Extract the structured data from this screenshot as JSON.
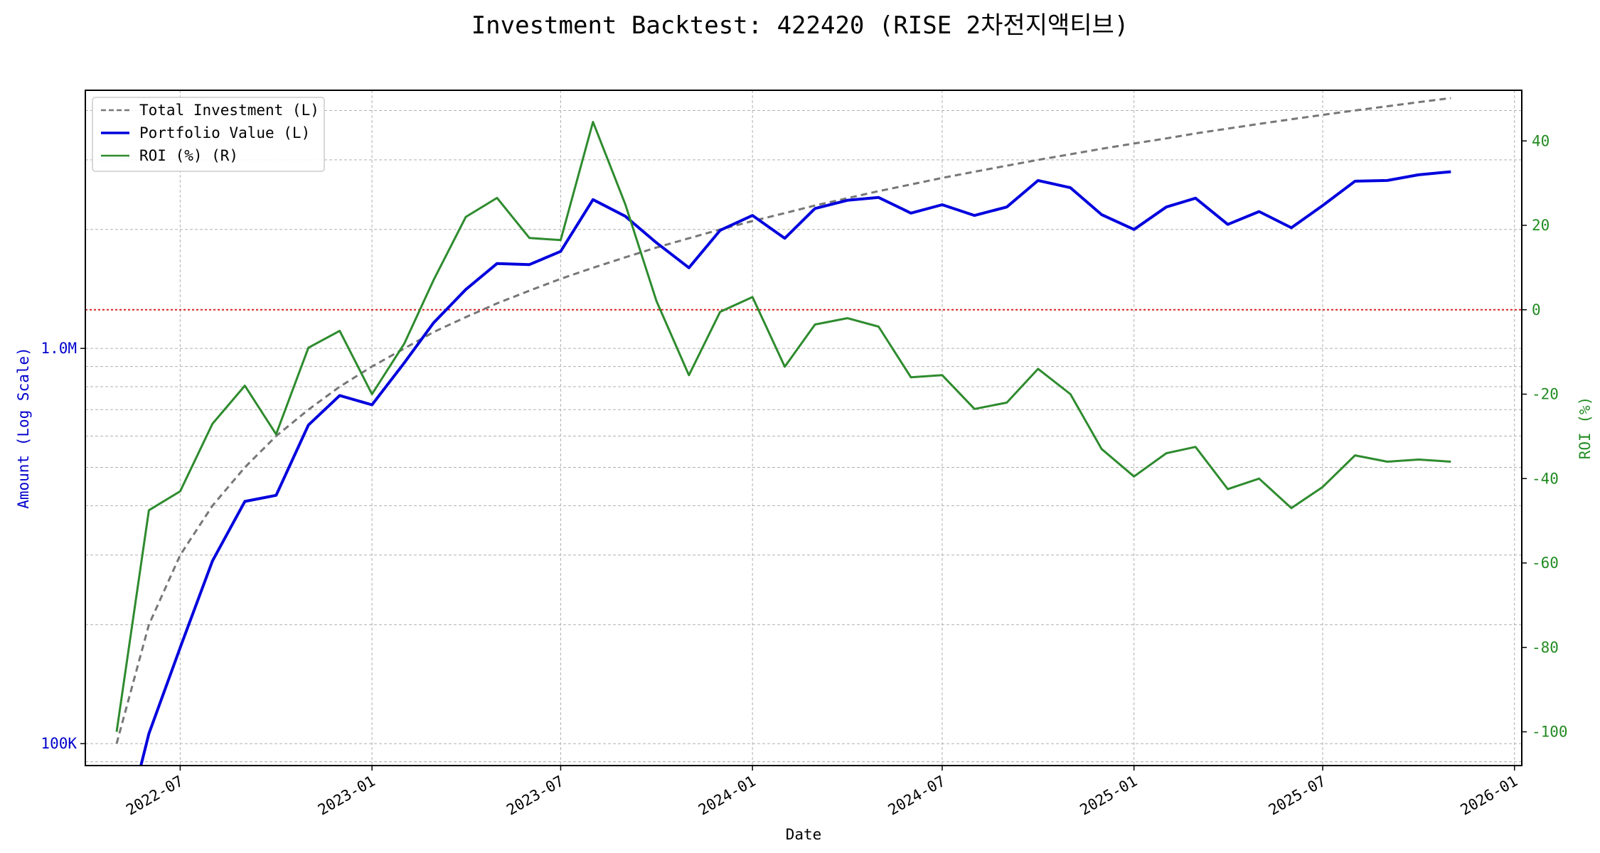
{
  "chart_data": {
    "type": "line",
    "title": "Investment Backtest: 422420 (RISE 2차전지액티브)",
    "xlabel": "Date",
    "ylabel_left": "Amount (Log Scale)",
    "ylabel_right": "ROI (%)",
    "x_ticks": [
      "2022-07",
      "2023-01",
      "2023-07",
      "2024-01",
      "2024-07",
      "2025-01",
      "2025-07",
      "2026-01"
    ],
    "y_left_ticks": [
      "100K",
      "1.0M"
    ],
    "y_right_ticks": [
      "40",
      "20",
      "0",
      "-20",
      "-40",
      "-60",
      "-80",
      "-100"
    ],
    "y_left_scale": "log",
    "y_left_range": [
      88000,
      4500000
    ],
    "y_right_range": [
      -108,
      52
    ],
    "x_range": [
      "2022-04-01",
      "2026-01-08"
    ],
    "grid": true,
    "legend_position": "top-left",
    "reference_line": {
      "axis": "right",
      "value": 0,
      "color": "#dd2222"
    },
    "colors": {
      "investment": "#777777",
      "portfolio": "#0000dd",
      "roi": "#2e8b2e",
      "left_axis": "#0000cc",
      "right_axis": "#228b22"
    },
    "x": [
      "2022-05",
      "2022-06",
      "2022-07",
      "2022-08",
      "2022-09",
      "2022-10",
      "2022-11",
      "2022-12",
      "2023-01",
      "2023-02",
      "2023-03",
      "2023-04",
      "2023-05",
      "2023-06",
      "2023-07",
      "2023-08",
      "2023-09",
      "2023-10",
      "2023-11",
      "2023-12",
      "2024-01",
      "2024-02",
      "2024-03",
      "2024-04",
      "2024-05",
      "2024-06",
      "2024-07",
      "2024-08",
      "2024-09",
      "2024-10",
      "2024-11",
      "2024-12",
      "2025-01",
      "2025-02",
      "2025-03",
      "2025-04",
      "2025-05",
      "2025-06",
      "2025-07",
      "2025-08",
      "2025-09",
      "2025-10",
      "2025-11"
    ],
    "series": [
      {
        "name": "Total Investment (L)",
        "axis": "left",
        "style": "dashed",
        "values": [
          100000,
          200000,
          300000,
          400000,
          500000,
          600000,
          700000,
          800000,
          900000,
          1000000,
          1100000,
          1200000,
          1300000,
          1400000,
          1500000,
          1600000,
          1700000,
          1800000,
          1900000,
          2000000,
          2100000,
          2200000,
          2300000,
          2400000,
          2500000,
          2600000,
          2700000,
          2800000,
          2900000,
          3000000,
          3100000,
          3200000,
          3300000,
          3400000,
          3500000,
          3600000,
          3700000,
          3800000,
          3900000,
          4000000,
          4100000,
          4200000,
          4300000
        ]
      },
      {
        "name": "Portfolio Value (L)",
        "axis": "left",
        "style": "solid",
        "values": [
          50000,
          106000,
          175000,
          290000,
          410000,
          425000,
          640000,
          760000,
          720000,
          920000,
          1160000,
          1410000,
          1640000,
          1630000,
          1760000,
          2380000,
          2160000,
          1850000,
          1600000,
          1990000,
          2170000,
          1900000,
          2260000,
          2370000,
          2410000,
          2200000,
          2310000,
          2170000,
          2280000,
          2660000,
          2550000,
          2180000,
          2000000,
          2280000,
          2400000,
          2060000,
          2220000,
          2020000,
          2300000,
          2650000,
          2660000,
          2750000,
          2800000
        ]
      },
      {
        "name": "ROI (%) (R)",
        "axis": "right",
        "style": "solid",
        "values": [
          -100,
          -47.5,
          -43,
          -27,
          -18,
          -29.5,
          -9,
          -5,
          -20,
          -8,
          7,
          22,
          26.5,
          17,
          16.5,
          44.5,
          25,
          2,
          -15.5,
          -0.5,
          3,
          -13.5,
          -3.5,
          -2,
          -4,
          -16,
          -15.5,
          -23.5,
          -22,
          -14,
          -20,
          -33,
          -39.5,
          -34,
          -32.5,
          -42.5,
          -40,
          -47,
          -42,
          -34.5,
          -36,
          -35.5,
          -36
        ]
      }
    ]
  }
}
